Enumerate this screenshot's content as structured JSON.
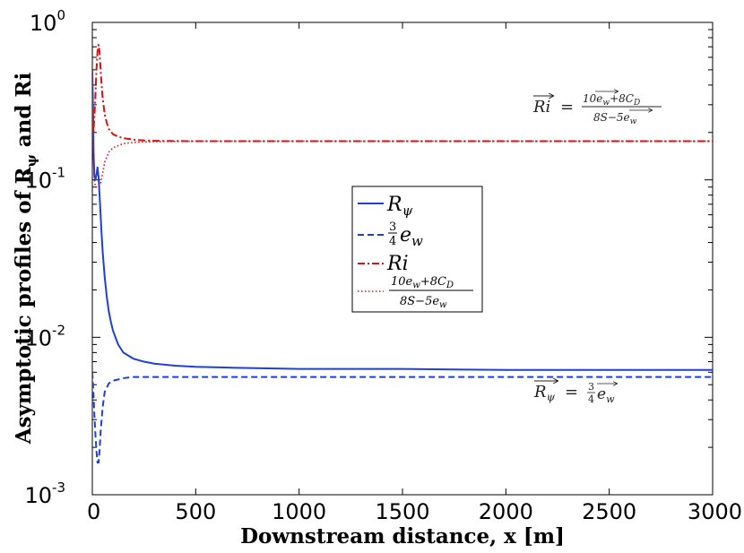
{
  "chart_data": {
    "type": "line",
    "xlabel": "Downstream distance, x [m]",
    "ylabel": "Asymptotic profiles of R",
    "ylabel_sub": "ψ",
    "ylabel_tail": " and Ri",
    "xlim": [
      0,
      3000
    ],
    "ylim": [
      0.001,
      1
    ],
    "yscale": "log",
    "x_ticks": [
      "0",
      "500",
      "1000",
      "1500",
      "2000",
      "2500",
      "3000"
    ],
    "x_tick_values": [
      0,
      500,
      1000,
      1500,
      2000,
      2500,
      3000
    ],
    "y_ticks_base": [
      "10",
      "10",
      "10",
      "10"
    ],
    "y_ticks_exp": [
      "-3",
      "-2",
      "-1",
      "0"
    ],
    "y_tick_values": [
      0.001,
      0.01,
      0.1,
      1
    ],
    "legend": {
      "position": "center",
      "entries": [
        {
          "label": "R",
          "sub": "ψ"
        },
        {
          "label": "e",
          "coef_num": "3",
          "coef_den": "4",
          "sub": "w"
        },
        {
          "label": "Ri"
        },
        {
          "num": "10e",
          "num_sub": "w",
          "num_tail": "+8C",
          "num_tail_sub": "D",
          "den": "8S−5e",
          "den_sub": "w"
        }
      ]
    },
    "annotations": [
      {
        "text": "Ri = (10 e_w + 8 C_D) / (8S − 5 e_w)",
        "lhs": "Ri",
        "eq": "=",
        "num": "10e",
        "num_sub": "w",
        "num_tail": "+8C",
        "num_tail_sub": "D",
        "den": "8S−5e",
        "den_sub": "w"
      },
      {
        "text": "R_ψ = 3/4 e_w",
        "lhs": "R",
        "lhs_sub": "ψ",
        "eq": "=",
        "coef_num": "3",
        "coef_den": "4",
        "var": "e",
        "var_sub": "w"
      }
    ],
    "series": [
      {
        "name": "R_psi",
        "color": "#1f3fdc",
        "style": "solid",
        "x": [
          0,
          3,
          6,
          10,
          15,
          20,
          25,
          30,
          35,
          40,
          45,
          50,
          60,
          70,
          80,
          90,
          100,
          125,
          150,
          200,
          250,
          300,
          400,
          500,
          700,
          1000,
          1500,
          2000,
          2500,
          3000
        ],
        "y": [
          0.5,
          0.3,
          0.15,
          0.105,
          0.1,
          0.108,
          0.12,
          0.105,
          0.08,
          0.06,
          0.045,
          0.035,
          0.024,
          0.018,
          0.0145,
          0.0125,
          0.011,
          0.009,
          0.008,
          0.0073,
          0.007,
          0.0068,
          0.0066,
          0.0065,
          0.0064,
          0.0063,
          0.0063,
          0.0062,
          0.0062,
          0.0062
        ]
      },
      {
        "name": "3/4 e_w",
        "color": "#1f3fdc",
        "style": "dashed",
        "x": [
          0,
          5,
          10,
          15,
          20,
          25,
          30,
          35,
          40,
          50,
          60,
          80,
          100,
          150,
          200,
          300,
          500,
          1000,
          2000,
          3000
        ],
        "y": [
          0.006,
          0.0045,
          0.0032,
          0.0024,
          0.0019,
          0.0016,
          0.0016,
          0.0019,
          0.0025,
          0.0036,
          0.0045,
          0.0051,
          0.0053,
          0.0055,
          0.0056,
          0.0056,
          0.0056,
          0.0056,
          0.0056,
          0.0056
        ]
      },
      {
        "name": "Ri",
        "color": "#dd1111",
        "style": "dashdot",
        "x": [
          0,
          5,
          10,
          15,
          20,
          25,
          30,
          35,
          40,
          45,
          50,
          60,
          70,
          80,
          100,
          125,
          150,
          200,
          250,
          300,
          500,
          1000,
          2000,
          3000
        ],
        "y": [
          0.35,
          0.2,
          0.25,
          0.35,
          0.5,
          0.65,
          0.72,
          0.65,
          0.5,
          0.4,
          0.33,
          0.26,
          0.23,
          0.21,
          0.195,
          0.188,
          0.184,
          0.18,
          0.178,
          0.177,
          0.176,
          0.176,
          0.176,
          0.176
        ]
      },
      {
        "name": "(10e_w+8C_D)/(8S-5e_w)",
        "color": "#dd1111",
        "style": "dotted",
        "x": [
          0,
          5,
          10,
          15,
          20,
          25,
          30,
          35,
          40,
          50,
          60,
          80,
          100,
          150,
          200,
          300,
          500,
          1000,
          2000,
          3000
        ],
        "y": [
          0.35,
          0.15,
          0.1,
          0.09,
          0.09,
          0.09,
          0.09,
          0.092,
          0.095,
          0.11,
          0.13,
          0.15,
          0.16,
          0.17,
          0.173,
          0.175,
          0.176,
          0.176,
          0.176,
          0.176
        ]
      }
    ]
  }
}
